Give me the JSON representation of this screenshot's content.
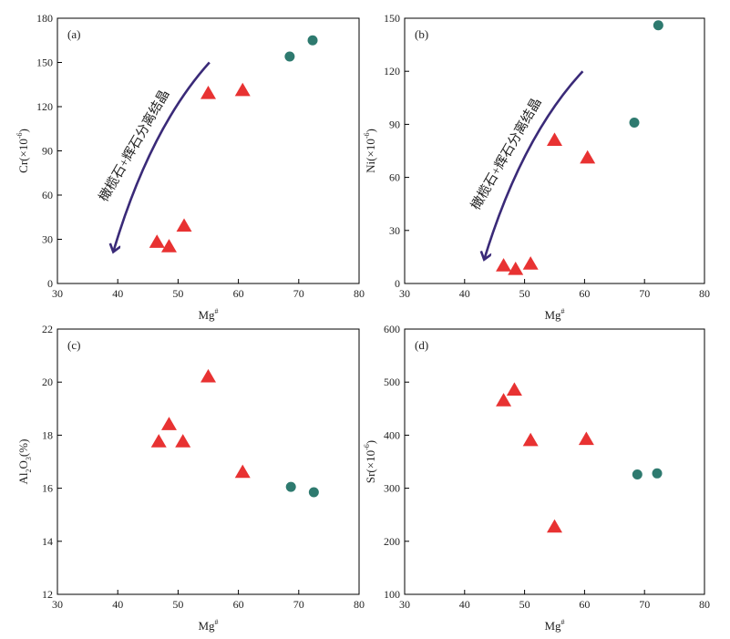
{
  "colors": {
    "triangle": "#e83232",
    "circle": "#2e7a6f",
    "arrow": "#3a2a78",
    "axis": "#000000"
  },
  "chart_data": [
    {
      "id": "a",
      "type": "scatter",
      "panel_label": "(a)",
      "xlabel": "Mg",
      "xlabel_sup": "#",
      "ylabel": "Cr(×10",
      "ylabel_sup": "-6",
      "ylabel_end": ")",
      "xlim": [
        30,
        80
      ],
      "ylim": [
        0,
        180
      ],
      "xticks": [
        30,
        40,
        50,
        60,
        70,
        80
      ],
      "yticks": [
        0,
        30,
        60,
        90,
        120,
        150,
        180
      ],
      "series": [
        {
          "name": "triangles",
          "marker": "triangle",
          "x": [
            46.5,
            48.5,
            51.0,
            55.0,
            60.7
          ],
          "y": [
            28,
            25,
            39,
            129,
            131
          ]
        },
        {
          "name": "circles",
          "marker": "circle",
          "x": [
            68.5,
            72.3
          ],
          "y": [
            154,
            165
          ]
        }
      ],
      "annotation": {
        "text": "橄榄石+辉石分离结晶",
        "arrow_from": [
          55.2,
          150
        ],
        "arrow_to": [
          39.3,
          22
        ]
      }
    },
    {
      "id": "b",
      "type": "scatter",
      "panel_label": "(b)",
      "xlabel": "Mg",
      "xlabel_sup": "#",
      "ylabel": "Ni(×10",
      "ylabel_sup": "-6",
      "ylabel_end": ")",
      "xlim": [
        30,
        80
      ],
      "ylim": [
        0,
        150
      ],
      "xticks": [
        30,
        40,
        50,
        60,
        70,
        80
      ],
      "yticks": [
        0,
        30,
        60,
        90,
        120,
        150
      ],
      "series": [
        {
          "name": "triangles",
          "marker": "triangle",
          "x": [
            46.5,
            48.5,
            51.0,
            55.0,
            60.5
          ],
          "y": [
            10,
            8,
            11,
            81,
            71
          ]
        },
        {
          "name": "circles",
          "marker": "circle",
          "x": [
            68.3,
            72.3
          ],
          "y": [
            91,
            146
          ]
        }
      ],
      "annotation": {
        "text": "橄榄石+辉石分离结晶",
        "arrow_from": [
          59.7,
          120
        ],
        "arrow_to": [
          43.3,
          14
        ]
      }
    },
    {
      "id": "c",
      "type": "scatter",
      "panel_label": "(c)",
      "xlabel": "Mg",
      "xlabel_sup": "#",
      "ylabel": "Al",
      "ylabel_sub1": "2",
      "ylabel_mid": "O",
      "ylabel_sub2": "3",
      "ylabel_end": "(%)",
      "xlim": [
        30,
        80
      ],
      "ylim": [
        12,
        22
      ],
      "xticks": [
        30,
        40,
        50,
        60,
        70,
        80
      ],
      "yticks": [
        12,
        14,
        16,
        18,
        20,
        22
      ],
      "series": [
        {
          "name": "triangles",
          "marker": "triangle",
          "x": [
            46.8,
            48.5,
            50.8,
            55.0,
            60.7
          ],
          "y": [
            17.75,
            18.4,
            17.75,
            20.2,
            16.6
          ]
        },
        {
          "name": "circles",
          "marker": "circle",
          "x": [
            68.7,
            72.5
          ],
          "y": [
            16.05,
            15.85
          ]
        }
      ]
    },
    {
      "id": "d",
      "type": "scatter",
      "panel_label": "(d)",
      "xlabel": "Mg",
      "xlabel_sup": "#",
      "ylabel": "Sr(×10",
      "ylabel_sup": "-6",
      "ylabel_end": ")",
      "xlim": [
        30,
        80
      ],
      "ylim": [
        100,
        600
      ],
      "xticks": [
        30,
        40,
        50,
        60,
        70,
        80
      ],
      "yticks": [
        100,
        200,
        300,
        400,
        500,
        600
      ],
      "series": [
        {
          "name": "triangles",
          "marker": "triangle",
          "x": [
            46.5,
            48.3,
            51.0,
            55.0,
            60.3
          ],
          "y": [
            465,
            485,
            390,
            227,
            392
          ]
        },
        {
          "name": "circles",
          "marker": "circle",
          "x": [
            68.8,
            72.1
          ],
          "y": [
            326,
            328
          ]
        }
      ]
    }
  ]
}
